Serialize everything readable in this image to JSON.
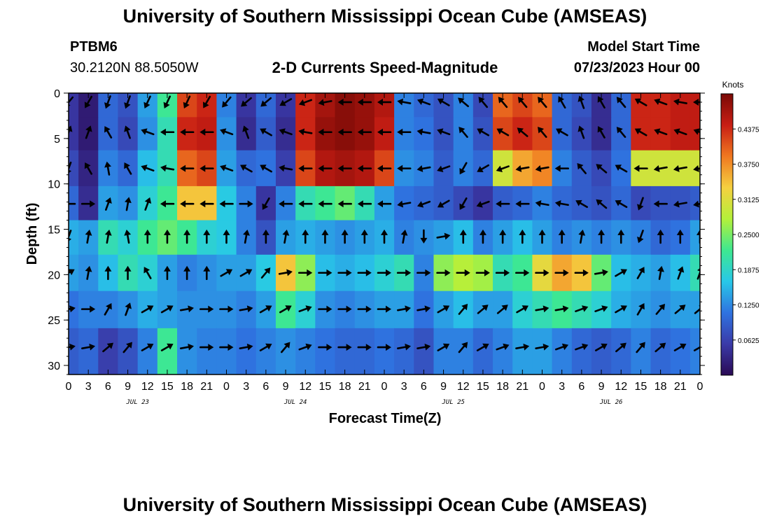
{
  "header": {
    "title": "University of Southern Mississippi Ocean Cube (AMSEAS)",
    "station_id": "PTBM6",
    "station_coords": "30.2120N  88.5050W",
    "model_start_label": "Model Start Time",
    "model_start_value": "07/23/2023 Hour 00"
  },
  "footer": {
    "title": "University of Southern Mississippi Ocean Cube (AMSEAS)"
  },
  "colors": {
    "colormap": [
      "#2a0a55",
      "#3a3aa8",
      "#2f73e0",
      "#28c8e8",
      "#3ee890",
      "#b4f03a",
      "#f5d040",
      "#f07820",
      "#c81e14",
      "#7a0a06"
    ],
    "arrow": "#000000"
  },
  "chart_data": {
    "type": "heatmap",
    "title": "2-D Currents Speed-Magnitude",
    "xlabel": "Forecast Time(Z)",
    "ylabel": "Depth (ft)",
    "colorbar_label": "Knots",
    "colorbar_ticks": [
      "0.0625",
      "0.1250",
      "0.1875",
      "0.2500",
      "0.3125",
      "0.3750",
      "0.4375"
    ],
    "colorbar_range": [
      0.0,
      0.5
    ],
    "x_tick_labels": [
      "0",
      "3",
      "6",
      "9",
      "12",
      "15",
      "18",
      "21",
      "0",
      "3",
      "6",
      "9",
      "12",
      "15",
      "18",
      "21",
      "0",
      "3",
      "6",
      "9",
      "12",
      "15",
      "18",
      "21",
      "0",
      "3",
      "6",
      "9",
      "12",
      "15",
      "18",
      "21",
      "0"
    ],
    "x_range_hours": [
      0,
      96
    ],
    "day_labels": [
      {
        "label": "JUL 23",
        "hour": 10.5
      },
      {
        "label": "JUL 24",
        "hour": 34.5
      },
      {
        "label": "JUL 25",
        "hour": 58.5
      },
      {
        "label": "JUL 26",
        "hour": 82.5
      }
    ],
    "y_tick_labels": [
      "0",
      "5",
      "10",
      "15",
      "20",
      "25",
      "30"
    ],
    "y_range_ft": [
      0,
      31
    ],
    "depths_ft": [
      1,
      4.3,
      8.3,
      12.2,
      15.8,
      19.8,
      23.8,
      28
    ],
    "times_h": [
      0,
      3,
      6,
      9,
      12,
      15,
      18,
      21,
      24,
      27,
      30,
      33,
      36,
      39,
      42,
      45,
      48,
      51,
      54,
      57,
      60,
      63,
      66,
      69,
      72,
      75,
      78,
      81,
      84,
      87,
      90,
      93,
      96
    ],
    "speed_knots": [
      [
        0.05,
        0.02,
        0.1,
        0.08,
        0.14,
        0.22,
        0.42,
        0.44,
        0.12,
        0.05,
        0.1,
        0.05,
        0.44,
        0.47,
        0.49,
        0.48,
        0.46,
        0.12,
        0.1,
        0.08,
        0.12,
        0.07,
        0.4,
        0.42,
        0.4,
        0.1,
        0.08,
        0.04,
        0.1,
        0.44,
        0.44,
        0.45,
        0.45
      ],
      [
        0.05,
        0.02,
        0.1,
        0.07,
        0.13,
        0.2,
        0.44,
        0.45,
        0.13,
        0.04,
        0.09,
        0.04,
        0.44,
        0.48,
        0.49,
        0.48,
        0.45,
        0.12,
        0.11,
        0.08,
        0.12,
        0.08,
        0.42,
        0.44,
        0.42,
        0.1,
        0.07,
        0.04,
        0.1,
        0.44,
        0.44,
        0.45,
        0.45
      ],
      [
        0.07,
        0.03,
        0.12,
        0.1,
        0.16,
        0.2,
        0.4,
        0.42,
        0.14,
        0.1,
        0.11,
        0.06,
        0.42,
        0.46,
        0.47,
        0.46,
        0.42,
        0.13,
        0.12,
        0.09,
        0.12,
        0.1,
        0.3,
        0.36,
        0.38,
        0.12,
        0.09,
        0.07,
        0.11,
        0.3,
        0.3,
        0.3,
        0.3
      ],
      [
        0.1,
        0.04,
        0.14,
        0.13,
        0.18,
        0.22,
        0.34,
        0.34,
        0.17,
        0.12,
        0.05,
        0.12,
        0.2,
        0.22,
        0.24,
        0.2,
        0.14,
        0.11,
        0.1,
        0.09,
        0.07,
        0.05,
        0.09,
        0.1,
        0.12,
        0.1,
        0.09,
        0.08,
        0.1,
        0.07,
        0.08,
        0.08,
        0.09
      ],
      [
        0.15,
        0.14,
        0.2,
        0.18,
        0.22,
        0.24,
        0.22,
        0.18,
        0.17,
        0.12,
        0.08,
        0.14,
        0.15,
        0.14,
        0.13,
        0.14,
        0.15,
        0.12,
        0.13,
        0.14,
        0.16,
        0.12,
        0.14,
        0.16,
        0.14,
        0.12,
        0.13,
        0.12,
        0.13,
        0.12,
        0.1,
        0.11,
        0.14
      ],
      [
        0.14,
        0.13,
        0.16,
        0.2,
        0.18,
        0.14,
        0.12,
        0.13,
        0.14,
        0.14,
        0.17,
        0.34,
        0.26,
        0.16,
        0.15,
        0.16,
        0.18,
        0.2,
        0.12,
        0.26,
        0.28,
        0.27,
        0.2,
        0.22,
        0.32,
        0.36,
        0.34,
        0.24,
        0.16,
        0.15,
        0.14,
        0.16,
        0.2
      ],
      [
        0.11,
        0.12,
        0.12,
        0.13,
        0.15,
        0.14,
        0.13,
        0.13,
        0.13,
        0.12,
        0.14,
        0.22,
        0.18,
        0.13,
        0.12,
        0.13,
        0.14,
        0.14,
        0.11,
        0.14,
        0.16,
        0.14,
        0.14,
        0.18,
        0.2,
        0.22,
        0.2,
        0.18,
        0.15,
        0.14,
        0.13,
        0.14,
        0.14
      ],
      [
        0.09,
        0.1,
        0.06,
        0.08,
        0.12,
        0.22,
        0.13,
        0.12,
        0.12,
        0.11,
        0.12,
        0.13,
        0.12,
        0.11,
        0.1,
        0.1,
        0.11,
        0.1,
        0.08,
        0.12,
        0.12,
        0.1,
        0.12,
        0.14,
        0.14,
        0.12,
        0.1,
        0.09,
        0.1,
        0.12,
        0.1,
        0.11,
        0.12
      ]
    ],
    "direction_deg": [
      [
        220,
        210,
        200,
        200,
        205,
        205,
        205,
        210,
        220,
        230,
        230,
        240,
        250,
        260,
        270,
        270,
        270,
        280,
        290,
        300,
        310,
        320,
        320,
        320,
        320,
        330,
        340,
        330,
        320,
        300,
        290,
        280,
        270
      ],
      [
        20,
        20,
        330,
        340,
        290,
        270,
        270,
        270,
        290,
        340,
        300,
        290,
        280,
        270,
        270,
        270,
        270,
        270,
        280,
        290,
        320,
        300,
        300,
        310,
        320,
        300,
        340,
        330,
        320,
        300,
        290,
        290,
        290
      ],
      [
        200,
        330,
        350,
        330,
        290,
        280,
        270,
        270,
        290,
        300,
        300,
        280,
        270,
        270,
        270,
        270,
        270,
        270,
        260,
        250,
        210,
        240,
        250,
        260,
        260,
        270,
        320,
        310,
        300,
        270,
        260,
        260,
        260
      ],
      [
        270,
        90,
        20,
        10,
        20,
        270,
        270,
        270,
        270,
        90,
        210,
        270,
        270,
        270,
        270,
        270,
        270,
        260,
        250,
        240,
        210,
        250,
        270,
        270,
        280,
        280,
        300,
        310,
        300,
        200,
        270,
        260,
        260
      ],
      [
        200,
        10,
        10,
        350,
        0,
        0,
        0,
        0,
        0,
        10,
        0,
        10,
        0,
        0,
        0,
        0,
        0,
        10,
        180,
        80,
        0,
        0,
        0,
        0,
        0,
        0,
        10,
        0,
        0,
        200,
        0,
        0,
        0
      ],
      [
        60,
        10,
        0,
        0,
        330,
        0,
        0,
        0,
        60,
        60,
        40,
        80,
        90,
        90,
        90,
        90,
        90,
        90,
        90,
        90,
        90,
        90,
        90,
        90,
        90,
        90,
        90,
        80,
        60,
        30,
        10,
        20,
        20
      ],
      [
        80,
        90,
        30,
        20,
        60,
        60,
        80,
        90,
        90,
        80,
        60,
        60,
        70,
        90,
        90,
        90,
        90,
        80,
        80,
        60,
        40,
        50,
        50,
        60,
        80,
        80,
        70,
        70,
        60,
        30,
        40,
        50,
        50
      ],
      [
        80,
        80,
        50,
        40,
        60,
        60,
        80,
        90,
        90,
        80,
        60,
        40,
        70,
        90,
        90,
        90,
        90,
        80,
        80,
        60,
        40,
        60,
        70,
        80,
        80,
        70,
        70,
        60,
        50,
        40,
        50,
        60,
        60
      ]
    ]
  }
}
